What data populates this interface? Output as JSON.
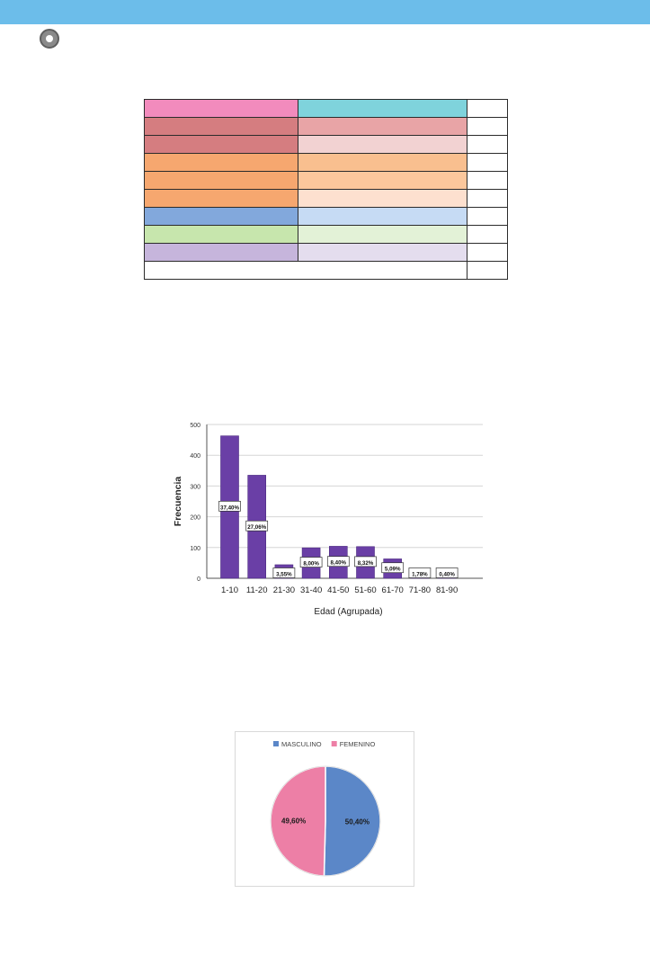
{
  "color_table": {
    "rows": [
      {
        "c1": "#f28bbd",
        "c2": "#7fd3dc",
        "c3": "#ffffff"
      },
      {
        "c1": "#d57d80",
        "c2": "#e8a4a6",
        "c3": "#ffffff"
      },
      {
        "c1": "#d57d80",
        "c2": "#f2d2d2",
        "c3": "#ffffff"
      },
      {
        "c1": "#f6a76f",
        "c2": "#f9bf8f",
        "c3": "#ffffff"
      },
      {
        "c1": "#f6a76f",
        "c2": "#fbc79c",
        "c3": "#ffffff"
      },
      {
        "c1": "#f6a76f",
        "c2": "#fde0cf",
        "c3": "#ffffff"
      },
      {
        "c1": "#82a8dc",
        "c2": "#c6dbf4",
        "c3": "#ffffff"
      },
      {
        "c1": "#c7e6ad",
        "c2": "#e3f2d7",
        "c3": "#ffffff"
      },
      {
        "c1": "#c6b5dc",
        "c2": "#e4ddee",
        "c3": "#ffffff"
      }
    ]
  },
  "chart_data": [
    {
      "type": "bar",
      "categories": [
        "1-10",
        "11-20",
        "21-30",
        "31-40",
        "41-50",
        "51-60",
        "61-70",
        "71-80",
        "81-90"
      ],
      "values": [
        463,
        335,
        44,
        99,
        104,
        103,
        63,
        22,
        5
      ],
      "data_labels": [
        "37,40%",
        "27,06%",
        "3,55%",
        "8,00%",
        "8,40%",
        "8,32%",
        "5,09%",
        "1,78%",
        "0,40%"
      ],
      "xlabel": "Edad (Agrupada)",
      "ylabel": "Frecuencia",
      "ylim": [
        0,
        500
      ],
      "yticks": [
        0,
        100,
        200,
        300,
        400,
        500
      ],
      "grid": true,
      "color": "#6a3fa6"
    },
    {
      "type": "pie",
      "labels": [
        "MASCULINO",
        "FEMENINO"
      ],
      "values": [
        50.4,
        49.6
      ],
      "data_labels": [
        "50,40%",
        "49,60%"
      ],
      "colors": [
        "#5b87c8",
        "#ed7fa6"
      ],
      "legend_position": "top"
    }
  ]
}
